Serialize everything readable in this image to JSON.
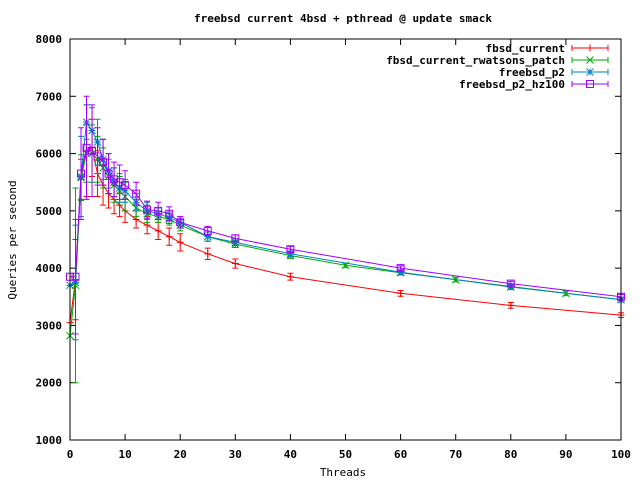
{
  "chart_data": {
    "type": "line",
    "title": "freebsd current 4bsd + pthread @ update smack",
    "xlabel": "Threads",
    "ylabel": "Queries per second",
    "xlim": [
      0,
      100
    ],
    "ylim": [
      1000,
      8000
    ],
    "xticks": [
      0,
      10,
      20,
      30,
      40,
      50,
      60,
      70,
      80,
      90,
      100
    ],
    "yticks": [
      1000,
      2000,
      3000,
      4000,
      5000,
      6000,
      7000,
      8000
    ],
    "grid": false,
    "legend_position": "top-right",
    "series": [
      {
        "name": "fbsd_current",
        "color": "#ff0000",
        "marker": "plus",
        "x": [
          0,
          1,
          2,
          3,
          4,
          5,
          6,
          7,
          8,
          9,
          10,
          12,
          14,
          16,
          18,
          20,
          25,
          30,
          40,
          60,
          80,
          100
        ],
        "y": [
          3050,
          3800,
          5550,
          6050,
          6100,
          5650,
          5450,
          5300,
          5200,
          5100,
          5000,
          4850,
          4750,
          4650,
          4550,
          4450,
          4250,
          4080,
          3850,
          3560,
          3350,
          3180
        ],
        "err": [
          0,
          700,
          350,
          800,
          500,
          400,
          350,
          250,
          250,
          200,
          200,
          150,
          150,
          150,
          150,
          150,
          100,
          80,
          60,
          50,
          50,
          40
        ]
      },
      {
        "name": "fbsd_current_rwatsons_patch",
        "color": "#00aa00",
        "marker": "cross",
        "x": [
          0,
          1,
          2,
          3,
          4,
          5,
          6,
          7,
          8,
          9,
          10,
          12,
          14,
          16,
          18,
          20,
          25,
          30,
          40,
          50,
          60,
          70,
          80,
          90,
          100
        ],
        "y": [
          2820,
          3700,
          5580,
          6000,
          6000,
          5900,
          5750,
          5600,
          5450,
          5350,
          5250,
          5050,
          4950,
          4900,
          4850,
          4750,
          4550,
          4420,
          4220,
          4050,
          3920,
          3800,
          3680,
          3560,
          3450
        ],
        "err": [
          0,
          1700,
          400,
          500,
          500,
          400,
          350,
          300,
          300,
          250,
          250,
          150,
          150,
          100,
          100,
          100,
          80,
          60,
          50,
          40,
          40,
          40,
          40,
          40,
          40
        ]
      },
      {
        "name": "freebsd_p2",
        "color": "#0080c0",
        "marker": "star",
        "x": [
          0,
          1,
          2,
          3,
          4,
          5,
          6,
          7,
          8,
          9,
          10,
          12,
          14,
          16,
          18,
          20,
          25,
          30,
          40,
          60,
          80,
          100
        ],
        "y": [
          3700,
          3750,
          5600,
          6550,
          6400,
          6200,
          5900,
          5700,
          5500,
          5400,
          5350,
          5150,
          5000,
          4950,
          4880,
          4800,
          4550,
          4450,
          4250,
          3930,
          3670,
          3450
        ],
        "err": [
          0,
          1000,
          700,
          300,
          400,
          400,
          350,
          300,
          250,
          250,
          200,
          150,
          150,
          100,
          100,
          100,
          80,
          60,
          50,
          40,
          40,
          40
        ]
      },
      {
        "name": "freebsd_p2_hz100",
        "color": "#a000ff",
        "marker": "square",
        "x": [
          0,
          1,
          2,
          3,
          4,
          5,
          6,
          7,
          8,
          9,
          10,
          12,
          14,
          16,
          18,
          20,
          25,
          30,
          40,
          60,
          80,
          100
        ],
        "y": [
          3850,
          3850,
          5650,
          6100,
          6050,
          5950,
          5850,
          5650,
          5550,
          5500,
          5450,
          5300,
          5020,
          5000,
          4950,
          4800,
          4650,
          4520,
          4330,
          4000,
          3730,
          3500
        ],
        "err": [
          0,
          1000,
          800,
          900,
          800,
          500,
          400,
          350,
          300,
          300,
          250,
          200,
          150,
          150,
          120,
          100,
          80,
          60,
          50,
          40,
          40,
          40
        ]
      }
    ]
  }
}
